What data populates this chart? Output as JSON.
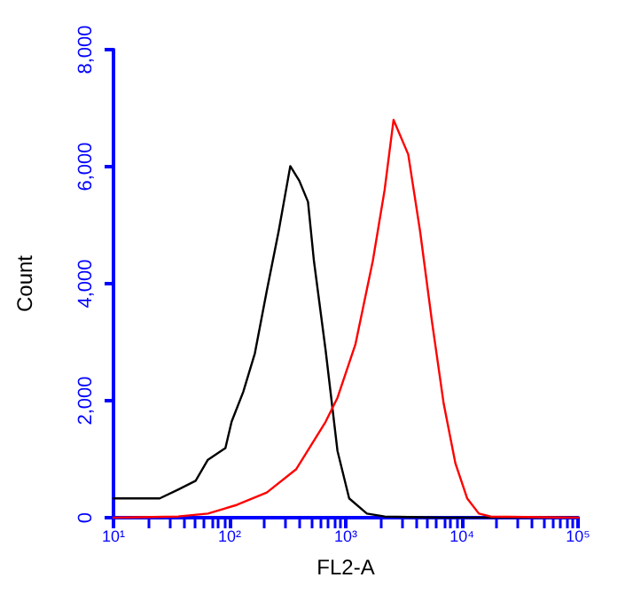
{
  "chart_data": {
    "type": "line",
    "xlabel": "FL2-A",
    "ylabel": "Count",
    "log": "x",
    "grid": false,
    "marker": "none",
    "line_style": "solid",
    "xlim": [
      10,
      100000
    ],
    "xticks": [
      {
        "value": 10,
        "label": "10¹"
      },
      {
        "value": 100,
        "label": "10²"
      },
      {
        "value": 1000,
        "label": "10³"
      },
      {
        "value": 10000,
        "label": "10⁴"
      },
      {
        "value": 100000,
        "label": "10⁵"
      }
    ],
    "ylim": [
      0,
      8000
    ],
    "yticks": [
      {
        "value": 0,
        "label": "0"
      },
      {
        "value": 2000,
        "label": "2,000"
      },
      {
        "value": 4000,
        "label": "4,000"
      },
      {
        "value": 6000,
        "label": "6,000"
      },
      {
        "value": 8000,
        "label": "8,000"
      }
    ],
    "series": [
      {
        "color": "#000000",
        "x": [
          10,
          20,
          25,
          36,
          51,
          65,
          92,
          104,
          131,
          165,
          209,
          264,
          333,
          398,
          473,
          532,
          671,
          849,
          1070,
          1520,
          2160,
          6970,
          100000
        ],
        "values": [
          330,
          330,
          330,
          480,
          630,
          990,
          1190,
          1640,
          2150,
          2810,
          3880,
          4890,
          6010,
          5760,
          5400,
          4390,
          2860,
          1140,
          330,
          70,
          20,
          0,
          0
        ]
      },
      {
        "color": "#ff0000",
        "x": [
          10,
          36,
          65,
          116,
          209,
          375,
          671,
          849,
          1210,
          1710,
          2160,
          2580,
          3450,
          4370,
          5510,
          6970,
          8790,
          11100,
          14000,
          17700,
          100000
        ],
        "values": [
          0,
          20,
          70,
          220,
          430,
          830,
          1640,
          2050,
          2960,
          4390,
          5600,
          6800,
          6210,
          4890,
          3370,
          1950,
          930,
          330,
          70,
          20,
          0
        ]
      }
    ]
  }
}
